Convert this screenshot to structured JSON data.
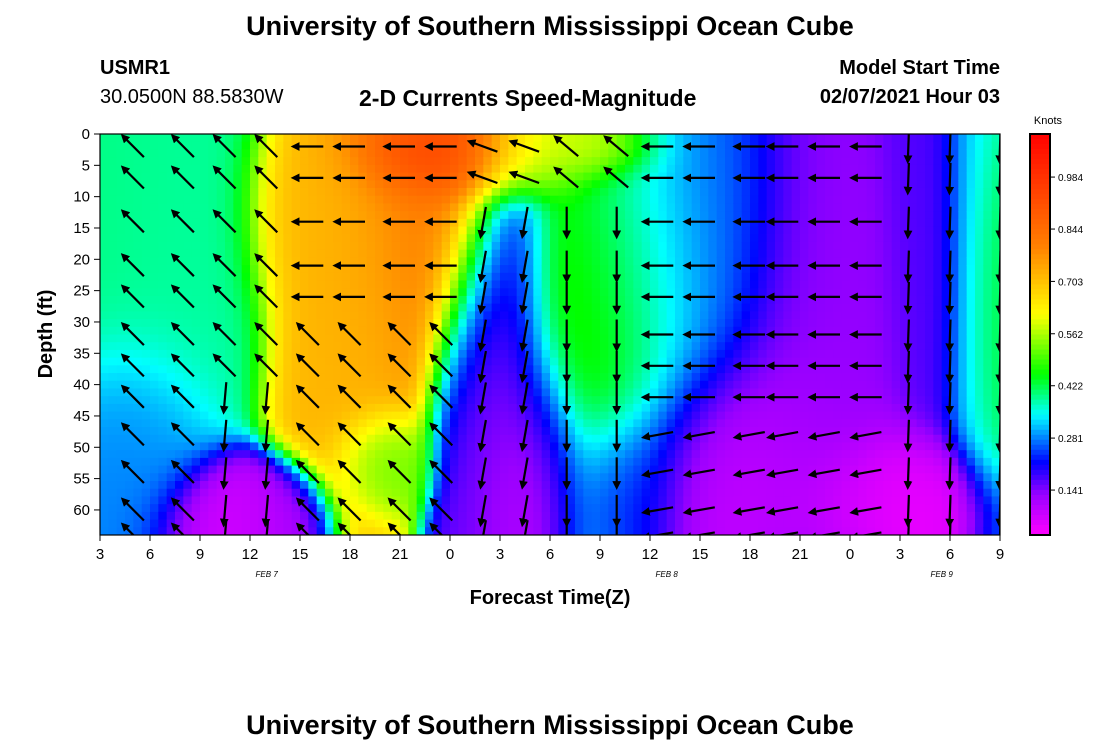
{
  "header": {
    "title": "University of Southern Mississippi Ocean Cube",
    "station_id": "USMR1",
    "coords": "30.0500N 88.5830W",
    "chart_title": "2-D Currents Speed-Magnitude",
    "model_label": "Model Start Time",
    "model_time": "02/07/2021 Hour 03"
  },
  "footer": {
    "title": "University of Southern Mississippi Ocean Cube"
  },
  "chart_data": {
    "type": "heatmap",
    "title": "2-D Currents Speed-Magnitude",
    "xlabel": "Forecast Time(Z)",
    "ylabel": "Depth (ft)",
    "x_range_hours": [
      0,
      54
    ],
    "y_range_ft": [
      0,
      64
    ],
    "x_ticks": [
      "3",
      "6",
      "9",
      "12",
      "15",
      "18",
      "21",
      "0",
      "3",
      "6",
      "9",
      "12",
      "15",
      "18",
      "21",
      "0",
      "3",
      "6",
      "9"
    ],
    "date_labels": [
      {
        "text": "FEB 7",
        "hour": 10
      },
      {
        "text": "FEB 8",
        "hour": 34
      },
      {
        "text": "FEB 9",
        "hour": 50.5
      }
    ],
    "y_ticks": [
      0,
      5,
      10,
      15,
      20,
      25,
      30,
      35,
      40,
      45,
      50,
      55,
      60
    ],
    "colorbar": {
      "unit": "Knots",
      "ticks": [
        "0.984",
        "0.844",
        "0.703",
        "0.562",
        "0.422",
        "0.281",
        "0.141"
      ],
      "values": [
        0.984,
        0.844,
        0.703,
        0.562,
        0.422,
        0.281,
        0.141
      ],
      "min": 0.02,
      "max": 1.1
    },
    "speed_features": [
      {
        "hour": 1.5,
        "depth": 10,
        "speed": 0.4,
        "sh": 5,
        "sd": 22
      },
      {
        "hour": 4,
        "depth": 15,
        "speed": 0.38,
        "sh": 4,
        "sd": 22
      },
      {
        "hour": 2,
        "depth": 50,
        "speed": 0.28,
        "sh": 3,
        "sd": 14
      },
      {
        "hour": 7.5,
        "depth": 62,
        "speed": 0.07,
        "sh": 3,
        "sd": 7
      },
      {
        "hour": 13,
        "depth": 12,
        "speed": 0.72,
        "sh": 3,
        "sd": 12
      },
      {
        "hour": 15,
        "depth": 30,
        "speed": 0.72,
        "sh": 3,
        "sd": 22
      },
      {
        "hour": 19,
        "depth": 12,
        "speed": 0.8,
        "sh": 4,
        "sd": 22
      },
      {
        "hour": 17,
        "depth": 52,
        "speed": 0.5,
        "sh": 2,
        "sd": 6
      },
      {
        "hour": 20,
        "depth": 3,
        "speed": 1.02,
        "sh": 3.5,
        "sd": 6
      },
      {
        "hour": 23.5,
        "depth": 3,
        "speed": 0.9,
        "sh": 3,
        "sd": 5
      },
      {
        "hour": 26,
        "depth": 4,
        "speed": 0.5,
        "sh": 3,
        "sd": 5
      },
      {
        "hour": 29,
        "depth": 2,
        "speed": 0.62,
        "sh": 3,
        "sd": 4
      },
      {
        "hour": 11,
        "depth": 62,
        "speed": 0.1,
        "sh": 2,
        "sd": 6
      },
      {
        "hour": 22.5,
        "depth": 45,
        "speed": 0.15,
        "sh": 2,
        "sd": 22
      },
      {
        "hour": 24.5,
        "depth": 38,
        "speed": 0.08,
        "sh": 2,
        "sd": 28
      },
      {
        "hour": 26.5,
        "depth": 52,
        "speed": 0.05,
        "sh": 2,
        "sd": 14
      },
      {
        "hour": 29,
        "depth": 35,
        "speed": 0.5,
        "sh": 4,
        "sd": 22
      },
      {
        "hour": 32,
        "depth": 25,
        "speed": 0.4,
        "sh": 4,
        "sd": 20
      },
      {
        "hour": 31,
        "depth": 56,
        "speed": 0.2,
        "sh": 3,
        "sd": 10
      },
      {
        "hour": 36,
        "depth": 20,
        "speed": 0.26,
        "sh": 4,
        "sd": 20
      },
      {
        "hour": 38,
        "depth": 52,
        "speed": 0.08,
        "sh": 5,
        "sd": 14
      },
      {
        "hour": 43,
        "depth": 35,
        "speed": 0.13,
        "sh": 4,
        "sd": 28
      },
      {
        "hour": 47,
        "depth": 58,
        "speed": 0.04,
        "sh": 4,
        "sd": 8
      },
      {
        "hour": 50,
        "depth": 60,
        "speed": 0.04,
        "sh": 2,
        "sd": 7
      },
      {
        "hour": 50,
        "depth": 20,
        "speed": 0.17,
        "sh": 2,
        "sd": 25
      },
      {
        "hour": 52.5,
        "depth": 20,
        "speed": 0.34,
        "sh": 1.5,
        "sd": 30
      },
      {
        "hour": 53.5,
        "depth": 25,
        "speed": 0.45,
        "sh": 1.5,
        "sd": 20
      }
    ],
    "vector_columns_hours": [
      2,
      5,
      7.5,
      10,
      12.5,
      15,
      18,
      20.5,
      23,
      25.5,
      28,
      31,
      33.5,
      36,
      39,
      41,
      43.5,
      46,
      48.5,
      51,
      54
    ],
    "vector_rows_ft": [
      2,
      7,
      14,
      21,
      26,
      32,
      37,
      42,
      48,
      54,
      60,
      64
    ]
  }
}
